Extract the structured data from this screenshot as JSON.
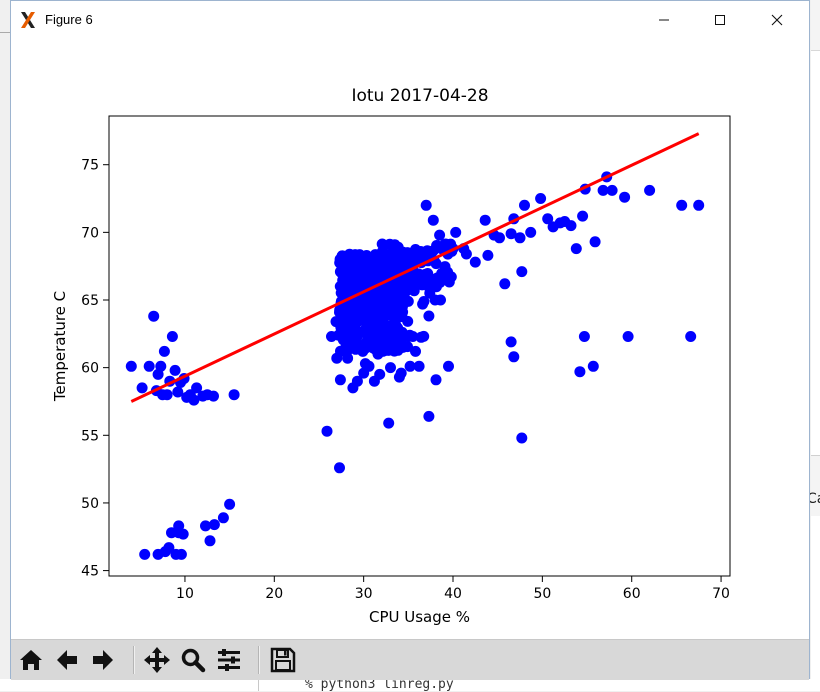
{
  "window": {
    "title": "Figure 6"
  },
  "background": {
    "terminal_text": "% python3 linreg.py",
    "edge_text": "Ca"
  },
  "toolbar": {
    "buttons": [
      {
        "name": "home",
        "icon": "home-icon"
      },
      {
        "name": "back",
        "icon": "arrow-left-icon"
      },
      {
        "name": "forward",
        "icon": "arrow-right-icon"
      },
      {
        "name": "pan",
        "icon": "move-icon"
      },
      {
        "name": "zoom",
        "icon": "magnifier-icon"
      },
      {
        "name": "subplots",
        "icon": "sliders-icon"
      },
      {
        "name": "save",
        "icon": "floppy-icon"
      }
    ]
  },
  "colors": {
    "points": "#0000ff",
    "regression": "#ff0000",
    "axes": "#000000"
  },
  "chart_data": {
    "type": "scatter",
    "title": "Iotu 2017-04-28",
    "xlabel": "CPU Usage %",
    "ylabel": "Temperature C",
    "xlim": [
      1.5,
      71
    ],
    "ylim": [
      44.6,
      78.6
    ],
    "xticks": [
      10,
      20,
      30,
      40,
      50,
      60,
      70
    ],
    "yticks": [
      45,
      50,
      55,
      60,
      65,
      70,
      75
    ],
    "grid": false,
    "legend": "none",
    "series": [
      {
        "type": "scatter",
        "points": [
          [
            4.0,
            60.1
          ],
          [
            5.2,
            58.5
          ],
          [
            6.0,
            60.1
          ],
          [
            6.5,
            63.8
          ],
          [
            7.0,
            59.5
          ],
          [
            7.3,
            60.1
          ],
          [
            7.7,
            61.2
          ],
          [
            8.0,
            58.0
          ],
          [
            8.3,
            59.0
          ],
          [
            8.6,
            62.3
          ],
          [
            8.9,
            59.8
          ],
          [
            9.2,
            58.2
          ],
          [
            9.5,
            58.9
          ],
          [
            9.9,
            59.2
          ],
          [
            10.2,
            57.8
          ],
          [
            10.6,
            58.0
          ],
          [
            11.0,
            57.6
          ],
          [
            11.3,
            58.5
          ],
          [
            12.0,
            57.9
          ],
          [
            12.5,
            58.0
          ],
          [
            13.2,
            57.9
          ],
          [
            7.5,
            58.0
          ],
          [
            6.8,
            58.3
          ],
          [
            15.5,
            58.0
          ],
          [
            5.5,
            46.2
          ],
          [
            7.0,
            46.2
          ],
          [
            7.8,
            46.4
          ],
          [
            8.2,
            46.7
          ],
          [
            8.5,
            47.8
          ],
          [
            9.0,
            46.2
          ],
          [
            9.3,
            48.3
          ],
          [
            9.6,
            46.2
          ],
          [
            9.8,
            47.7
          ],
          [
            12.3,
            48.3
          ],
          [
            12.8,
            47.2
          ],
          [
            13.3,
            48.4
          ],
          [
            14.3,
            48.9
          ],
          [
            15.0,
            49.9
          ],
          [
            9.3,
            47.8
          ],
          [
            25.9,
            55.3
          ],
          [
            27.3,
            52.6
          ],
          [
            32.8,
            55.9
          ],
          [
            37.3,
            56.4
          ],
          [
            38.1,
            59.1
          ],
          [
            39.5,
            60.1
          ],
          [
            45.8,
            66.2
          ],
          [
            46.5,
            61.9
          ],
          [
            46.8,
            60.8
          ],
          [
            47.7,
            54.8
          ],
          [
            47.7,
            67.1
          ],
          [
            37.0,
            72.0
          ],
          [
            37.8,
            70.9
          ],
          [
            38.5,
            69.8
          ],
          [
            40.3,
            70.0
          ],
          [
            41.2,
            68.8
          ],
          [
            42.5,
            67.8
          ],
          [
            43.6,
            70.9
          ],
          [
            43.9,
            68.3
          ],
          [
            45.2,
            69.6
          ],
          [
            46.5,
            69.9
          ],
          [
            46.8,
            71.0
          ],
          [
            47.5,
            69.6
          ],
          [
            48.0,
            72.0
          ],
          [
            48.7,
            70.0
          ],
          [
            49.8,
            72.5
          ],
          [
            50.6,
            71.0
          ],
          [
            51.2,
            70.4
          ],
          [
            52.5,
            70.8
          ],
          [
            53.2,
            70.5
          ],
          [
            53.8,
            68.8
          ],
          [
            54.5,
            71.2
          ],
          [
            54.8,
            73.2
          ],
          [
            55.7,
            60.1
          ],
          [
            54.2,
            59.7
          ],
          [
            54.7,
            62.3
          ],
          [
            55.9,
            69.3
          ],
          [
            56.8,
            73.1
          ],
          [
            57.2,
            74.1
          ],
          [
            57.8,
            73.1
          ],
          [
            59.2,
            72.6
          ],
          [
            59.6,
            62.3
          ],
          [
            62.0,
            73.1
          ],
          [
            65.6,
            72.0
          ],
          [
            66.6,
            62.3
          ],
          [
            67.5,
            72.0
          ],
          [
            52.0,
            70.7
          ],
          [
            44.6,
            69.8
          ],
          [
            41.5,
            68.4
          ],
          [
            40.0,
            68.8
          ],
          [
            33.5,
            66.2
          ],
          [
            35.0,
            64.9
          ],
          [
            35.5,
            62.3
          ],
          [
            35.8,
            61.2
          ],
          [
            35.2,
            60.1
          ],
          [
            34.0,
            59.3
          ],
          [
            33.0,
            60.0
          ],
          [
            32.5,
            62.3
          ],
          [
            33.2,
            62.3
          ],
          [
            34.2,
            59.6
          ],
          [
            36.2,
            60.1
          ],
          [
            38.0,
            65.0
          ],
          [
            37.4,
            65.5
          ],
          [
            38.6,
            65.0
          ],
          [
            36.6,
            64.7
          ],
          [
            36.8,
            66.8
          ],
          [
            37.9,
            67.9
          ],
          [
            39.3,
            66.9
          ],
          [
            35.8,
            68.5
          ],
          [
            34.9,
            68.5
          ],
          [
            28.8,
            58.5
          ],
          [
            29.3,
            59.0
          ],
          [
            31.2,
            59.0
          ],
          [
            31.8,
            59.5
          ],
          [
            30.0,
            59.6
          ],
          [
            27.4,
            59.1
          ],
          [
            27.0,
            60.7
          ],
          [
            28.2,
            60.7
          ],
          [
            30.6,
            60.1
          ],
          [
            29.9,
            61.2
          ],
          [
            27.2,
            62.4
          ],
          [
            26.9,
            63.4
          ],
          [
            26.4,
            62.3
          ],
          [
            30.5,
            62.3
          ],
          [
            31.5,
            63.4
          ],
          [
            29.2,
            62.0
          ],
          [
            28.0,
            61.5
          ],
          [
            31.6,
            61.0
          ],
          [
            30.2,
            60.3
          ],
          [
            27.6,
            63.8
          ]
        ]
      },
      {
        "type": "line",
        "name": "",
        "x": [
          4.0,
          67.5
        ],
        "y": [
          57.5,
          77.3
        ]
      }
    ]
  }
}
